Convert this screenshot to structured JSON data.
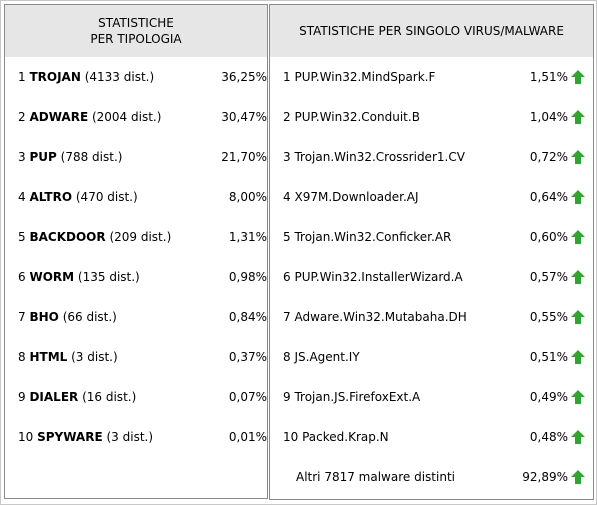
{
  "left": {
    "header": [
      "STATISTICHE",
      "PER TIPOLOGIA"
    ],
    "rows": [
      {
        "rank": "1",
        "name": "TROJAN",
        "detail": "(4133 dist.)",
        "percent": "36,25%"
      },
      {
        "rank": "2",
        "name": "ADWARE",
        "detail": "(2004 dist.)",
        "percent": "30,47%"
      },
      {
        "rank": "3",
        "name": "PUP",
        "detail": "(788 dist.)",
        "percent": "21,70%"
      },
      {
        "rank": "4",
        "name": "ALTRO",
        "detail": "(470 dist.)",
        "percent": "8,00%"
      },
      {
        "rank": "5",
        "name": "BACKDOOR",
        "detail": "(209 dist.)",
        "percent": "1,31%"
      },
      {
        "rank": "6",
        "name": "WORM",
        "detail": "(135 dist.)",
        "percent": "0,98%"
      },
      {
        "rank": "7",
        "name": "BHO",
        "detail": "(66 dist.)",
        "percent": "0,84%"
      },
      {
        "rank": "8",
        "name": "HTML",
        "detail": "(3 dist.)",
        "percent": "0,37%"
      },
      {
        "rank": "9",
        "name": "DIALER",
        "detail": "(16 dist.)",
        "percent": "0,07%"
      },
      {
        "rank": "10",
        "name": "SPYWARE",
        "detail": "(3 dist.)",
        "percent": "0,01%"
      }
    ]
  },
  "right": {
    "header": "STATISTICHE PER SINGOLO VIRUS/MALWARE",
    "rows": [
      {
        "rank": "1",
        "name": "PUP.Win32.MindSpark.F",
        "percent": "1,51%"
      },
      {
        "rank": "2",
        "name": "PUP.Win32.Conduit.B",
        "percent": "1,04%"
      },
      {
        "rank": "3",
        "name": "Trojan.Win32.Crossrider1.CV",
        "percent": "0,72%"
      },
      {
        "rank": "4",
        "name": "X97M.Downloader.AJ",
        "percent": "0,64%"
      },
      {
        "rank": "5",
        "name": "Trojan.Win32.Conficker.AR",
        "percent": "0,60%"
      },
      {
        "rank": "6",
        "name": "PUP.Win32.InstallerWizard.A",
        "percent": "0,57%"
      },
      {
        "rank": "7",
        "name": "Adware.Win32.Mutabaha.DH",
        "percent": "0,55%"
      },
      {
        "rank": "8",
        "name": "JS.Agent.IY",
        "percent": "0,51%"
      },
      {
        "rank": "9",
        "name": "Trojan.JS.FirefoxExt.A",
        "percent": "0,49%"
      },
      {
        "rank": "10",
        "name": "Packed.Krap.N",
        "percent": "0,48%"
      }
    ],
    "footer": {
      "name": "Altri 7817 malware distinti",
      "percent": "92,89%"
    }
  }
}
